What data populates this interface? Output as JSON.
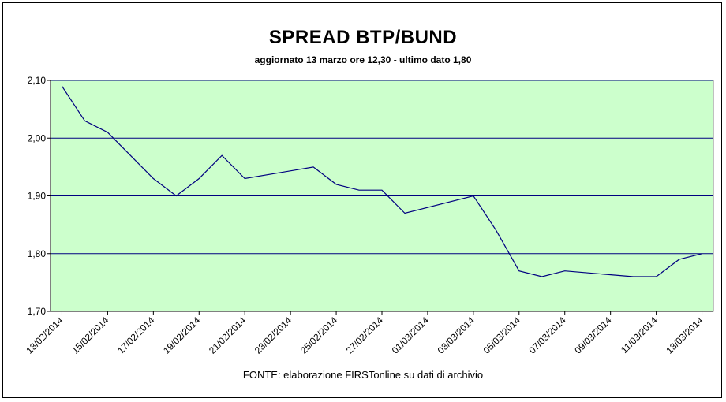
{
  "chart_data": {
    "type": "line",
    "title": "SPREAD BTP/BUND",
    "subtitle": "aggiornato 13 marzo ore 12,30 - ultimo dato 1,80",
    "source": "FONTE: elaborazione FIRSTonline su dati di archivio",
    "ylim": [
      1.7,
      2.1
    ],
    "yticks": [
      "1,70",
      "1,80",
      "1,90",
      "2,00",
      "2,10"
    ],
    "xlim": [
      "2014-02-13",
      "2014-03-14"
    ],
    "xticks": [
      "13/02/2014",
      "15/02/2014",
      "17/02/2014",
      "19/02/2014",
      "21/02/2014",
      "23/02/2014",
      "25/02/2014",
      "27/02/2014",
      "01/03/2014",
      "03/03/2014",
      "05/03/2014",
      "07/03/2014",
      "09/03/2014",
      "11/03/2014",
      "13/03/2014"
    ],
    "grid": "horizontal",
    "colors": {
      "plot_background": "#ccffcc",
      "line": "#000080",
      "grid": "#000080"
    },
    "series": [
      {
        "x": [
          "2014-02-13",
          "2014-02-14",
          "2014-02-15",
          "2014-02-17",
          "2014-02-18",
          "2014-02-19",
          "2014-02-20",
          "2014-02-21",
          "2014-02-24",
          "2014-02-25",
          "2014-02-26",
          "2014-02-27",
          "2014-02-28",
          "2014-03-03",
          "2014-03-04",
          "2014-03-05",
          "2014-03-06",
          "2014-03-07",
          "2014-03-10",
          "2014-03-11",
          "2014-03-12",
          "2014-03-13"
        ],
        "values": [
          2.09,
          2.03,
          2.01,
          1.93,
          1.9,
          1.93,
          1.97,
          1.93,
          1.95,
          1.92,
          1.91,
          1.91,
          1.87,
          1.9,
          1.84,
          1.77,
          1.76,
          1.77,
          1.76,
          1.76,
          1.79,
          1.8
        ]
      }
    ]
  }
}
